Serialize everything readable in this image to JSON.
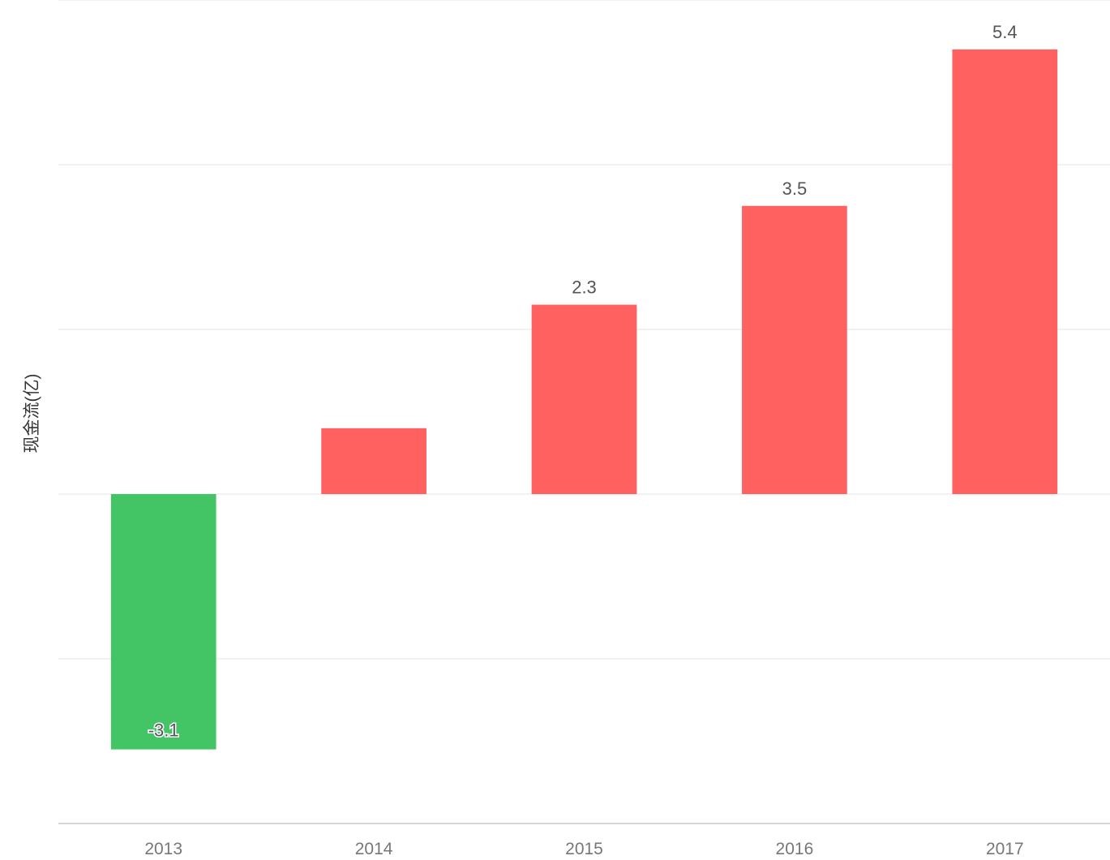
{
  "chart_data": {
    "type": "bar",
    "ylabel": "现金流(亿)",
    "categories": [
      "2013",
      "2014",
      "2015",
      "2016",
      "2017"
    ],
    "values": [
      -3.1,
      0.8,
      2.3,
      3.5,
      5.4
    ],
    "value_labels": [
      "-3.1",
      "",
      "2.3",
      "3.5",
      "5.4"
    ],
    "ylim": [
      -4,
      6
    ],
    "grid": true,
    "legend": "none",
    "colors": {
      "positive": "#ff6161",
      "negative": "#43c566"
    }
  }
}
